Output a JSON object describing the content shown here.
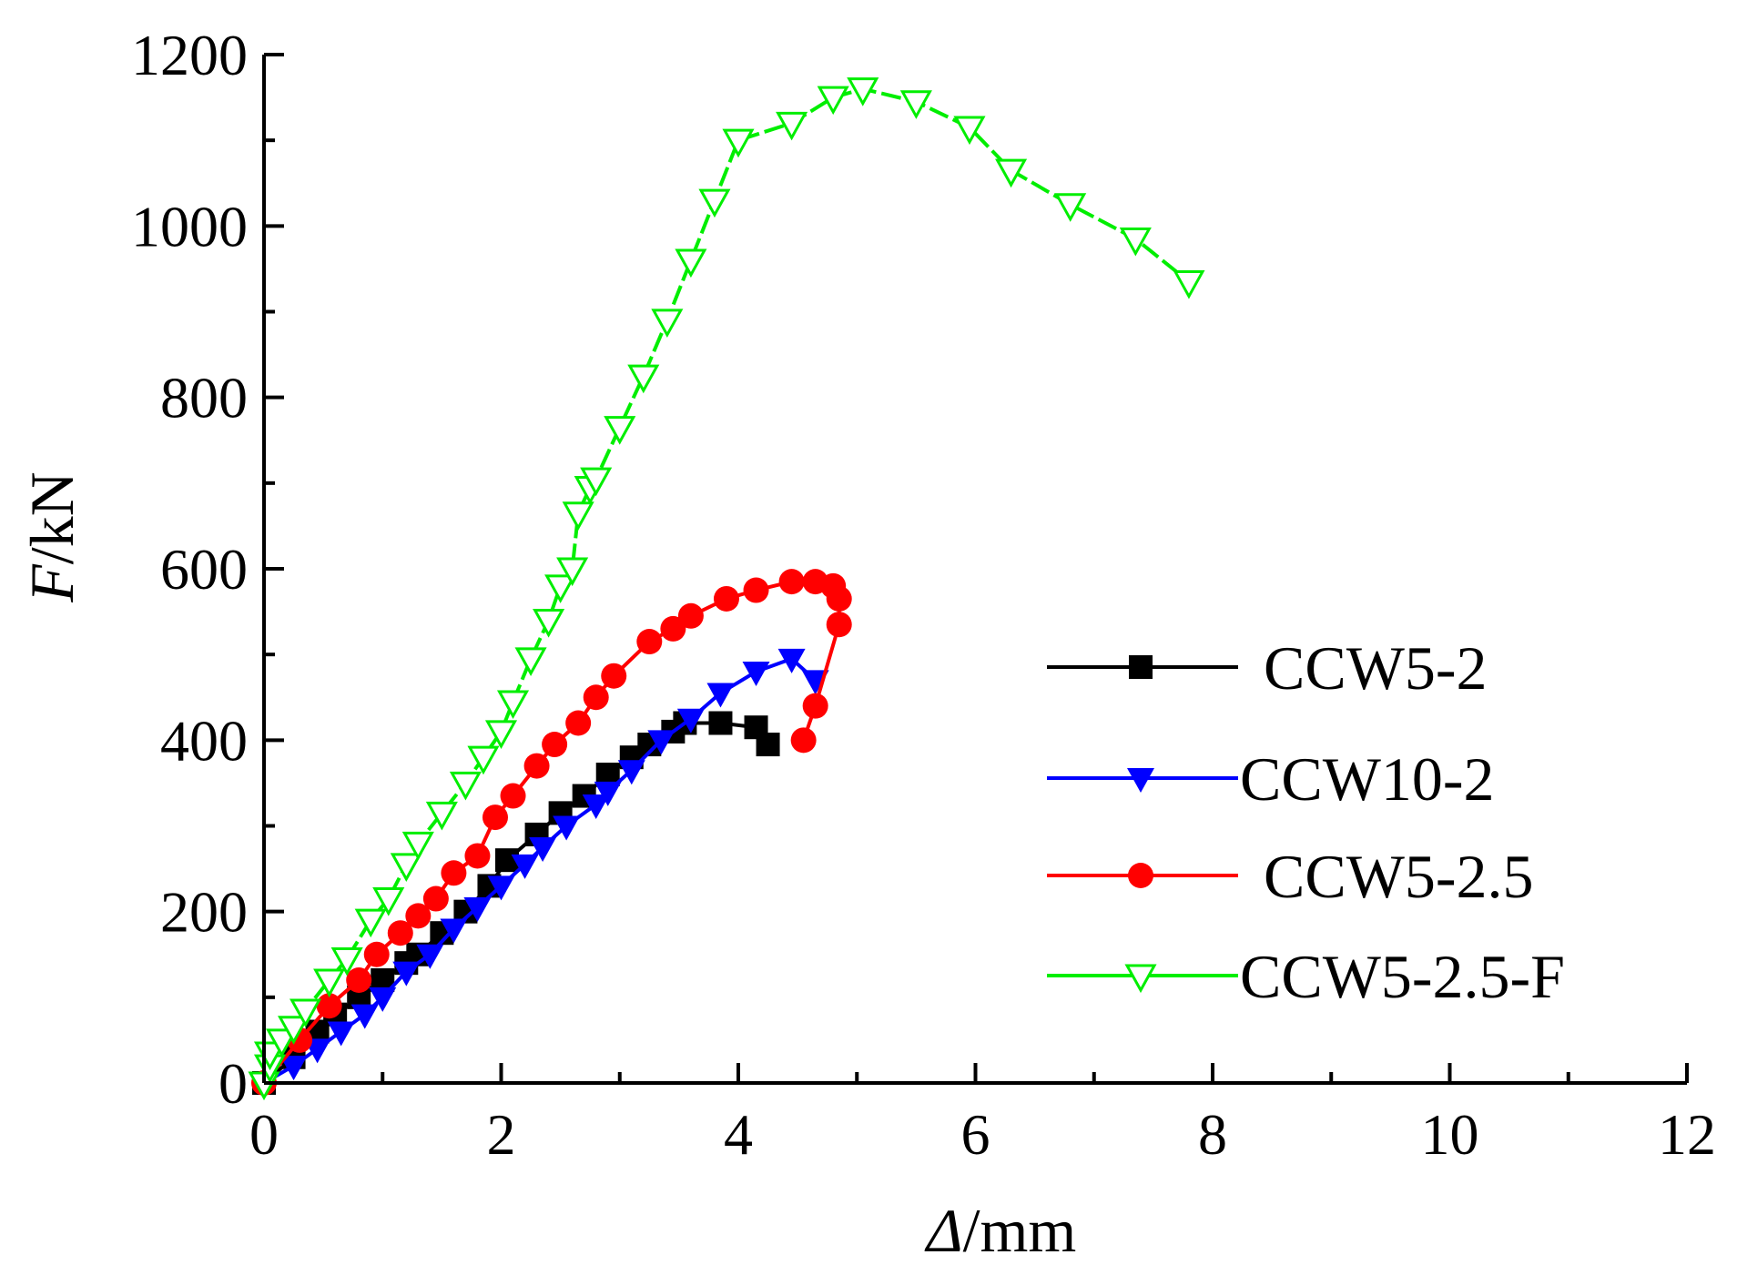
{
  "chart_data": {
    "type": "line",
    "title": "",
    "xlabel": {
      "var": "Δ",
      "unit": "/mm"
    },
    "ylabel": {
      "var": "F",
      "unit": "/kN"
    },
    "xlim": [
      0,
      12
    ],
    "ylim": [
      0,
      1200
    ],
    "xticks": [
      0,
      2,
      4,
      6,
      8,
      10,
      12
    ],
    "yticks": [
      0,
      200,
      400,
      600,
      800,
      1000,
      1200
    ],
    "grid": false,
    "legend_position": "right-center",
    "series": [
      {
        "name": "CCW5-2",
        "color": "#000000",
        "marker": "square",
        "line_style": "solid",
        "points": [
          [
            0,
            0
          ],
          [
            0.25,
            30
          ],
          [
            0.45,
            60
          ],
          [
            0.6,
            80
          ],
          [
            0.8,
            100
          ],
          [
            1.0,
            120
          ],
          [
            1.2,
            140
          ],
          [
            1.3,
            150
          ],
          [
            1.5,
            175
          ],
          [
            1.7,
            200
          ],
          [
            1.9,
            230
          ],
          [
            2.05,
            260
          ],
          [
            2.3,
            290
          ],
          [
            2.5,
            315
          ],
          [
            2.7,
            335
          ],
          [
            2.9,
            360
          ],
          [
            3.1,
            380
          ],
          [
            3.25,
            395
          ],
          [
            3.45,
            410
          ],
          [
            3.55,
            420
          ],
          [
            3.85,
            420
          ],
          [
            4.15,
            415
          ],
          [
            4.25,
            395
          ]
        ]
      },
      {
        "name": "CCW10-2",
        "color": "#0000ff",
        "marker": "triangle-down",
        "line_style": "solid",
        "points": [
          [
            0,
            0
          ],
          [
            0.25,
            20
          ],
          [
            0.45,
            40
          ],
          [
            0.65,
            60
          ],
          [
            0.85,
            80
          ],
          [
            1.0,
            100
          ],
          [
            1.2,
            130
          ],
          [
            1.4,
            150
          ],
          [
            1.6,
            180
          ],
          [
            1.8,
            205
          ],
          [
            2.0,
            230
          ],
          [
            2.2,
            255
          ],
          [
            2.35,
            275
          ],
          [
            2.55,
            300
          ],
          [
            2.8,
            325
          ],
          [
            2.9,
            340
          ],
          [
            3.1,
            365
          ],
          [
            3.35,
            400
          ],
          [
            3.6,
            425
          ],
          [
            3.85,
            455
          ],
          [
            4.15,
            480
          ],
          [
            4.45,
            495
          ],
          [
            4.65,
            470
          ]
        ]
      },
      {
        "name": "CCW5-2.5",
        "color": "#ff0000",
        "marker": "circle",
        "line_style": "solid",
        "points": [
          [
            0,
            0
          ],
          [
            0.3,
            50
          ],
          [
            0.55,
            90
          ],
          [
            0.8,
            120
          ],
          [
            0.95,
            150
          ],
          [
            1.15,
            175
          ],
          [
            1.3,
            195
          ],
          [
            1.45,
            215
          ],
          [
            1.6,
            245
          ],
          [
            1.8,
            265
          ],
          [
            1.95,
            310
          ],
          [
            2.1,
            335
          ],
          [
            2.3,
            370
          ],
          [
            2.45,
            395
          ],
          [
            2.65,
            420
          ],
          [
            2.8,
            450
          ],
          [
            2.95,
            475
          ],
          [
            3.25,
            515
          ],
          [
            3.45,
            530
          ],
          [
            3.6,
            545
          ],
          [
            3.9,
            565
          ],
          [
            4.15,
            575
          ],
          [
            4.45,
            585
          ],
          [
            4.65,
            585
          ],
          [
            4.8,
            580
          ],
          [
            4.85,
            565
          ],
          [
            4.85,
            535
          ],
          [
            4.65,
            440
          ],
          [
            4.55,
            400
          ]
        ]
      },
      {
        "name": "CCW5-2.5-F",
        "color": "#00ee00",
        "marker": "triangle-down-open",
        "line_style": "dashed",
        "points": [
          [
            0,
            0
          ],
          [
            0.05,
            20
          ],
          [
            0.05,
            35
          ],
          [
            0.15,
            50
          ],
          [
            0.25,
            65
          ],
          [
            0.35,
            85
          ],
          [
            0.55,
            120
          ],
          [
            0.7,
            145
          ],
          [
            0.9,
            190
          ],
          [
            1.05,
            215
          ],
          [
            1.2,
            255
          ],
          [
            1.3,
            280
          ],
          [
            1.5,
            315
          ],
          [
            1.7,
            350
          ],
          [
            1.85,
            380
          ],
          [
            2.0,
            410
          ],
          [
            2.1,
            445
          ],
          [
            2.25,
            495
          ],
          [
            2.4,
            540
          ],
          [
            2.5,
            580
          ],
          [
            2.6,
            600
          ],
          [
            2.65,
            665
          ],
          [
            2.75,
            695
          ],
          [
            2.8,
            705
          ],
          [
            3.0,
            765
          ],
          [
            3.2,
            825
          ],
          [
            3.4,
            890
          ],
          [
            3.6,
            960
          ],
          [
            3.8,
            1030
          ],
          [
            4.0,
            1100
          ],
          [
            4.45,
            1120
          ],
          [
            4.8,
            1150
          ],
          [
            5.05,
            1160
          ],
          [
            5.5,
            1145
          ],
          [
            5.95,
            1115
          ],
          [
            6.3,
            1065
          ],
          [
            6.8,
            1025
          ],
          [
            7.35,
            985
          ],
          [
            7.8,
            935
          ]
        ]
      }
    ]
  }
}
